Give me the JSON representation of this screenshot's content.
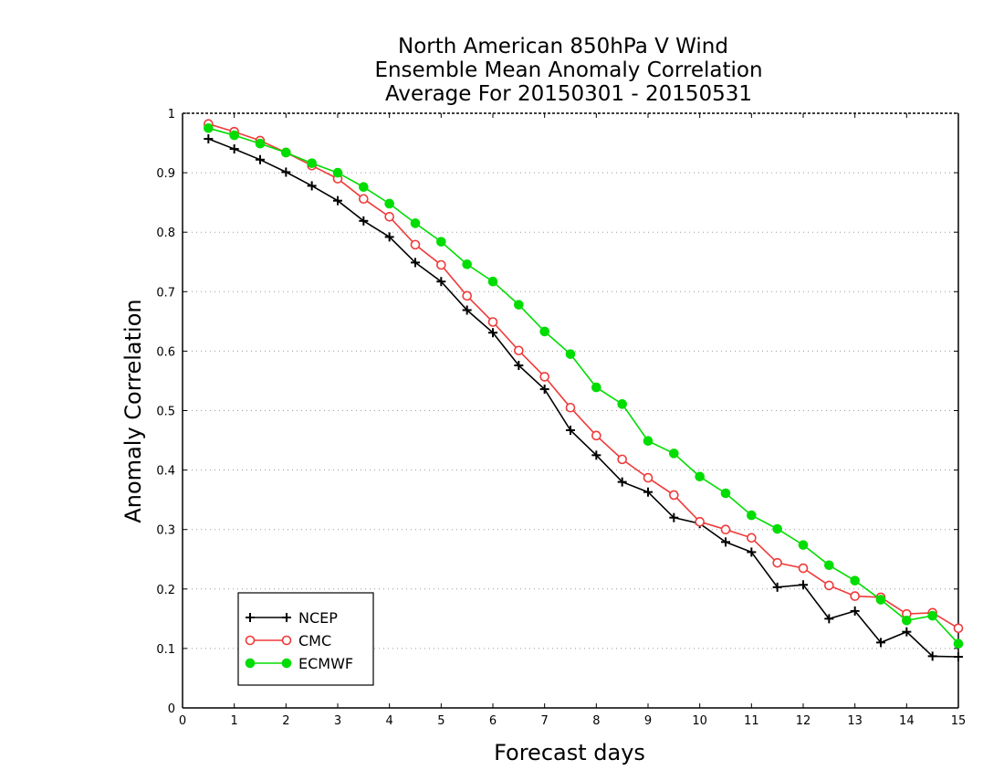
{
  "chart_data": {
    "type": "line",
    "title": [
      "North American 850hPa V Wind",
      "Ensemble Mean Anomaly Correlation",
      "Average For 20150301 - 20150531"
    ],
    "xlabel": "Forecast days",
    "ylabel": "Anomaly Correlation",
    "xlim": [
      0,
      15
    ],
    "ylim": [
      0,
      1
    ],
    "xticks": [
      "0",
      "1",
      "2",
      "3",
      "4",
      "5",
      "6",
      "7",
      "8",
      "9",
      "10",
      "11",
      "12",
      "13",
      "14",
      "15"
    ],
    "yticks": [
      "0",
      "0.1",
      "0.2",
      "0.3",
      "0.4",
      "0.5",
      "0.6",
      "0.7",
      "0.8",
      "0.9",
      "1"
    ],
    "grid": "horizontal dotted",
    "legend_position": "bottom-left",
    "x": [
      0.5,
      1,
      1.5,
      2,
      2.5,
      3,
      3.5,
      4,
      4.5,
      5,
      5.5,
      6,
      6.5,
      7,
      7.5,
      8,
      8.5,
      9,
      9.5,
      10,
      10.5,
      11,
      11.5,
      12,
      12.5,
      13,
      13.5,
      14,
      14.5,
      15
    ],
    "series": [
      {
        "name": "NCEP",
        "color": "#000000",
        "marker": "plus",
        "values": [
          0.957,
          0.94,
          0.922,
          0.901,
          0.878,
          0.853,
          0.819,
          0.792,
          0.749,
          0.717,
          0.669,
          0.631,
          0.576,
          0.536,
          0.467,
          0.425,
          0.38,
          0.363,
          0.32,
          0.31,
          0.279,
          0.262,
          0.203,
          0.207,
          0.15,
          0.163,
          0.11,
          0.128,
          0.087,
          0.086
        ]
      },
      {
        "name": "CMC",
        "color": "#ef3a3a",
        "marker": "open-circle",
        "values": [
          0.982,
          0.969,
          0.954,
          0.934,
          0.912,
          0.89,
          0.856,
          0.826,
          0.779,
          0.745,
          0.693,
          0.649,
          0.601,
          0.557,
          0.505,
          0.458,
          0.418,
          0.387,
          0.358,
          0.313,
          0.3,
          0.286,
          0.244,
          0.235,
          0.206,
          0.188,
          0.186,
          0.158,
          0.16,
          0.134
        ]
      },
      {
        "name": "ECMWF",
        "color": "#00dd00",
        "marker": "filled-circle",
        "values": [
          0.975,
          0.963,
          0.949,
          0.934,
          0.916,
          0.9,
          0.876,
          0.848,
          0.815,
          0.784,
          0.746,
          0.717,
          0.678,
          0.633,
          0.595,
          0.539,
          0.511,
          0.449,
          0.428,
          0.389,
          0.361,
          0.324,
          0.301,
          0.274,
          0.24,
          0.214,
          0.182,
          0.147,
          0.155,
          0.108
        ]
      }
    ]
  }
}
